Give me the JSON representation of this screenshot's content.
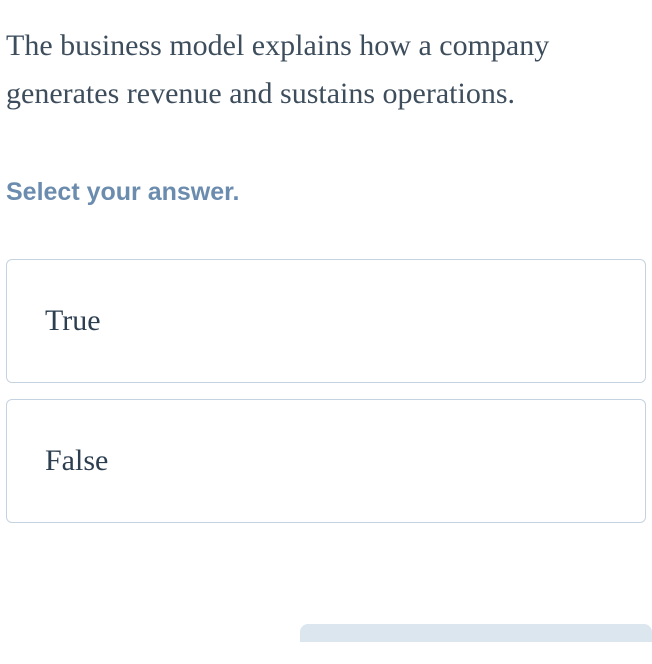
{
  "question": {
    "text": "The business model explains how a company generates revenue and sustains operations.",
    "text_color": "#3d4d5c",
    "font_size": 30
  },
  "prompt": {
    "text": "Select your answer.",
    "text_color": "#6b8cae",
    "font_size": 25
  },
  "answers": [
    {
      "label": "True"
    },
    {
      "label": "False"
    }
  ],
  "styles": {
    "option_border_color": "#c5d3e0",
    "option_text_color": "#2c3e50",
    "background_color": "#ffffff",
    "bottom_button_color": "#dce6ee"
  }
}
